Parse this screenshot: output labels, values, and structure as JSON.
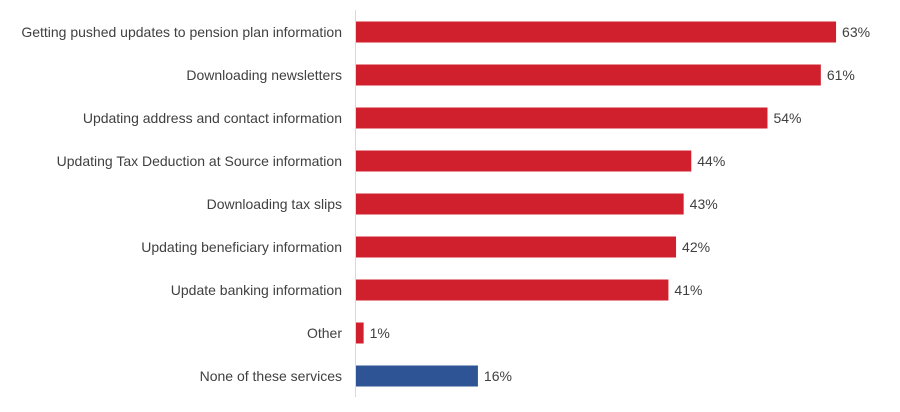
{
  "chart_data": {
    "type": "bar",
    "orientation": "horizontal",
    "categories": [
      "Getting pushed updates to pension plan information",
      "Downloading newsletters",
      "Updating address and contact information",
      "Updating Tax Deduction at Source information",
      "Downloading tax slips",
      "Updating beneficiary information",
      "Update banking information",
      "Other",
      "None of these services"
    ],
    "values": [
      63,
      61,
      54,
      44,
      43,
      42,
      41,
      1,
      16
    ],
    "data_labels": [
      "63%",
      "61%",
      "54%",
      "44%",
      "43%",
      "42%",
      "41%",
      "1%",
      "16%"
    ],
    "colors": [
      "#d0202e",
      "#d0202e",
      "#d0202e",
      "#d0202e",
      "#d0202e",
      "#d0202e",
      "#d0202e",
      "#d0202e",
      "#2e5496"
    ],
    "unit": "%",
    "xlim": [
      0,
      70
    ],
    "grid": false,
    "title": "",
    "xlabel": "",
    "ylabel": ""
  }
}
